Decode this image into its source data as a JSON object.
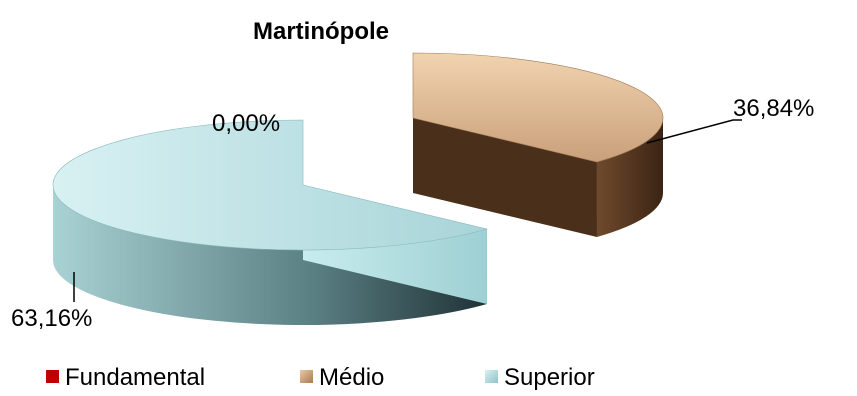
{
  "chart_data": {
    "type": "pie",
    "title": "Martinópole",
    "categories": [
      "Fundamental",
      "Médio",
      "Superior"
    ],
    "values": [
      0.0,
      36.84,
      63.16
    ],
    "labels": [
      "0,00%",
      "36,84%",
      "63,16%"
    ],
    "colors": [
      "#c00000",
      "#c49a6c",
      "#9fd4d8"
    ],
    "exploded": true,
    "style": "3d",
    "legend": "bottom"
  }
}
